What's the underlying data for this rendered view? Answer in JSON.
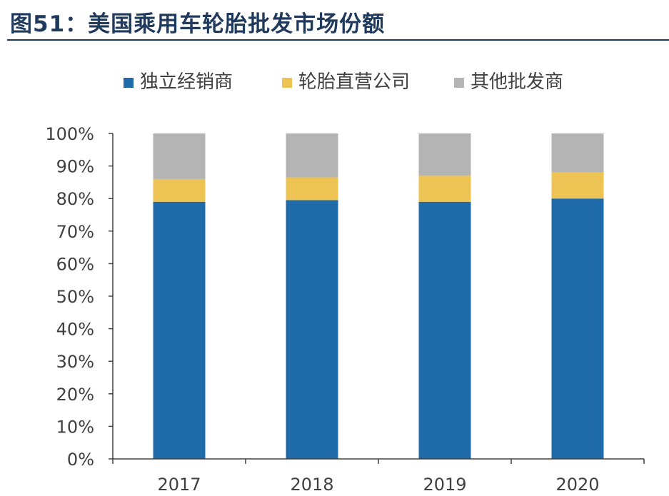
{
  "figure": {
    "title": "图51：美国乘用车轮胎批发市场份额"
  },
  "colors": {
    "series_1": "#1f6aa8",
    "series_2": "#edc453",
    "series_3": "#b4b4b4",
    "axis": "#404040",
    "tick_label": "#404040",
    "title": "#1f3a5c"
  },
  "chart_data": {
    "type": "bar",
    "stacked": true,
    "title": "图51：美国乘用车轮胎批发市场份额",
    "xlabel": "",
    "ylabel": "",
    "categories": [
      "2017",
      "2018",
      "2019",
      "2020"
    ],
    "series": [
      {
        "name": "独立经销商",
        "values": [
          79,
          79.5,
          79,
          80
        ]
      },
      {
        "name": "轮胎直营公司",
        "values": [
          7,
          7,
          8,
          8
        ]
      },
      {
        "name": "其他批发商",
        "values": [
          14,
          13.5,
          13,
          12
        ]
      }
    ],
    "ylim": [
      0,
      100
    ],
    "yticks": [
      "0%",
      "10%",
      "20%",
      "30%",
      "40%",
      "50%",
      "60%",
      "70%",
      "80%",
      "90%",
      "100%"
    ],
    "grid": false,
    "legend_position": "top-center"
  }
}
